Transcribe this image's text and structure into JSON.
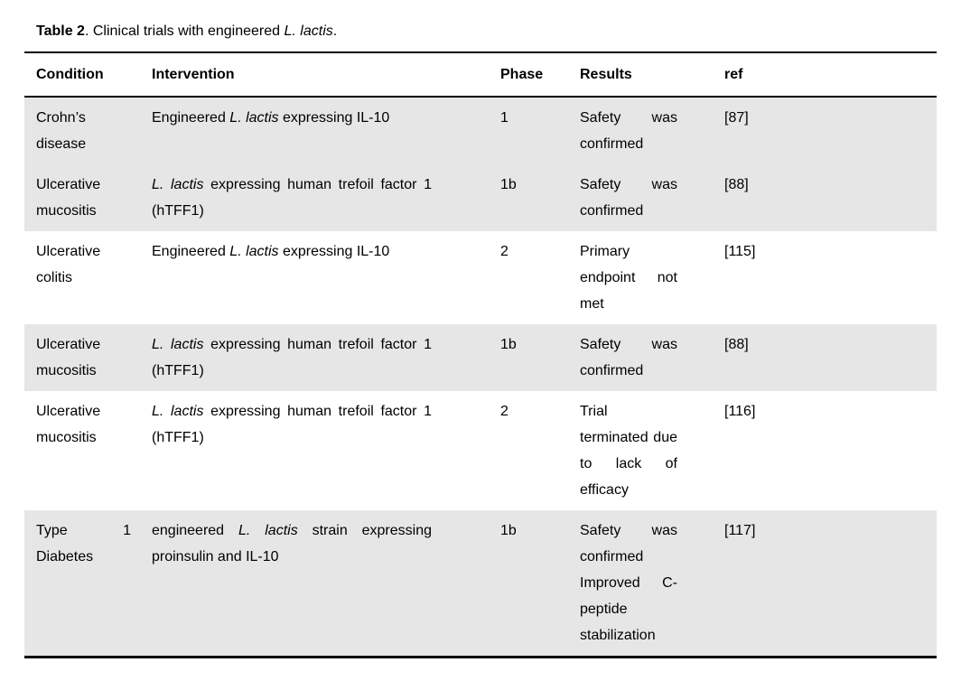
{
  "title": {
    "bold": "Table 2",
    "mid": ". Clinical trials with engineered ",
    "italic": "L. lactis",
    "end": "."
  },
  "colors": {
    "shaded_row_bg": "#e6e6e6",
    "rule": "#000000",
    "text": "#000000"
  },
  "table": {
    "headers": {
      "condition": "Condition",
      "intervention": "Intervention",
      "phase": "Phase",
      "results": "Results",
      "ref": "ref"
    },
    "rows": [
      {
        "condition": "Crohn’s disease",
        "intervention": {
          "pre": "Engineered ",
          "italic": "L. lactis",
          "post": " expressing IL-10"
        },
        "phase": "1",
        "results": "Safety was confirmed",
        "ref": "[87]",
        "shaded": true
      },
      {
        "condition": "Ulcerative mucositis",
        "intervention": {
          "pre": "",
          "italic": "L. lactis",
          "post": " expressing human trefoil factor 1 (hTFF1)"
        },
        "phase": "1b",
        "results": "Safety was confirmed",
        "ref": "[88]",
        "shaded": true
      },
      {
        "condition": "Ulcerative colitis",
        "intervention": {
          "pre": "Engineered ",
          "italic": "L. lactis",
          "post": " expressing IL-10"
        },
        "phase": "2",
        "results": "Primary endpoint not met",
        "ref": "[115]",
        "shaded": false
      },
      {
        "condition": "Ulcerative mucositis",
        "intervention": {
          "pre": "",
          "italic": "L. lactis",
          "post": " expressing human trefoil factor 1 (hTFF1)"
        },
        "phase": "1b",
        "results": "Safety was confirmed",
        "ref": "[88]",
        "shaded": true
      },
      {
        "condition": "Ulcerative mucositis",
        "intervention": {
          "pre": "",
          "italic": "L. lactis",
          "post": " expressing human trefoil factor 1 (hTFF1)"
        },
        "phase": "2",
        "results": "Trial terminated due to lack of efficacy",
        "ref": "[116]",
        "shaded": false
      },
      {
        "condition": "Type 1 Diabetes",
        "intervention": {
          "pre": "engineered ",
          "italic": "L. lactis",
          "post": " strain expressing proinsulin and IL-10"
        },
        "phase": "1b",
        "results": "Safety was confirmed Improved C-peptide stabilization",
        "ref": "[117]",
        "shaded": true
      }
    ]
  }
}
